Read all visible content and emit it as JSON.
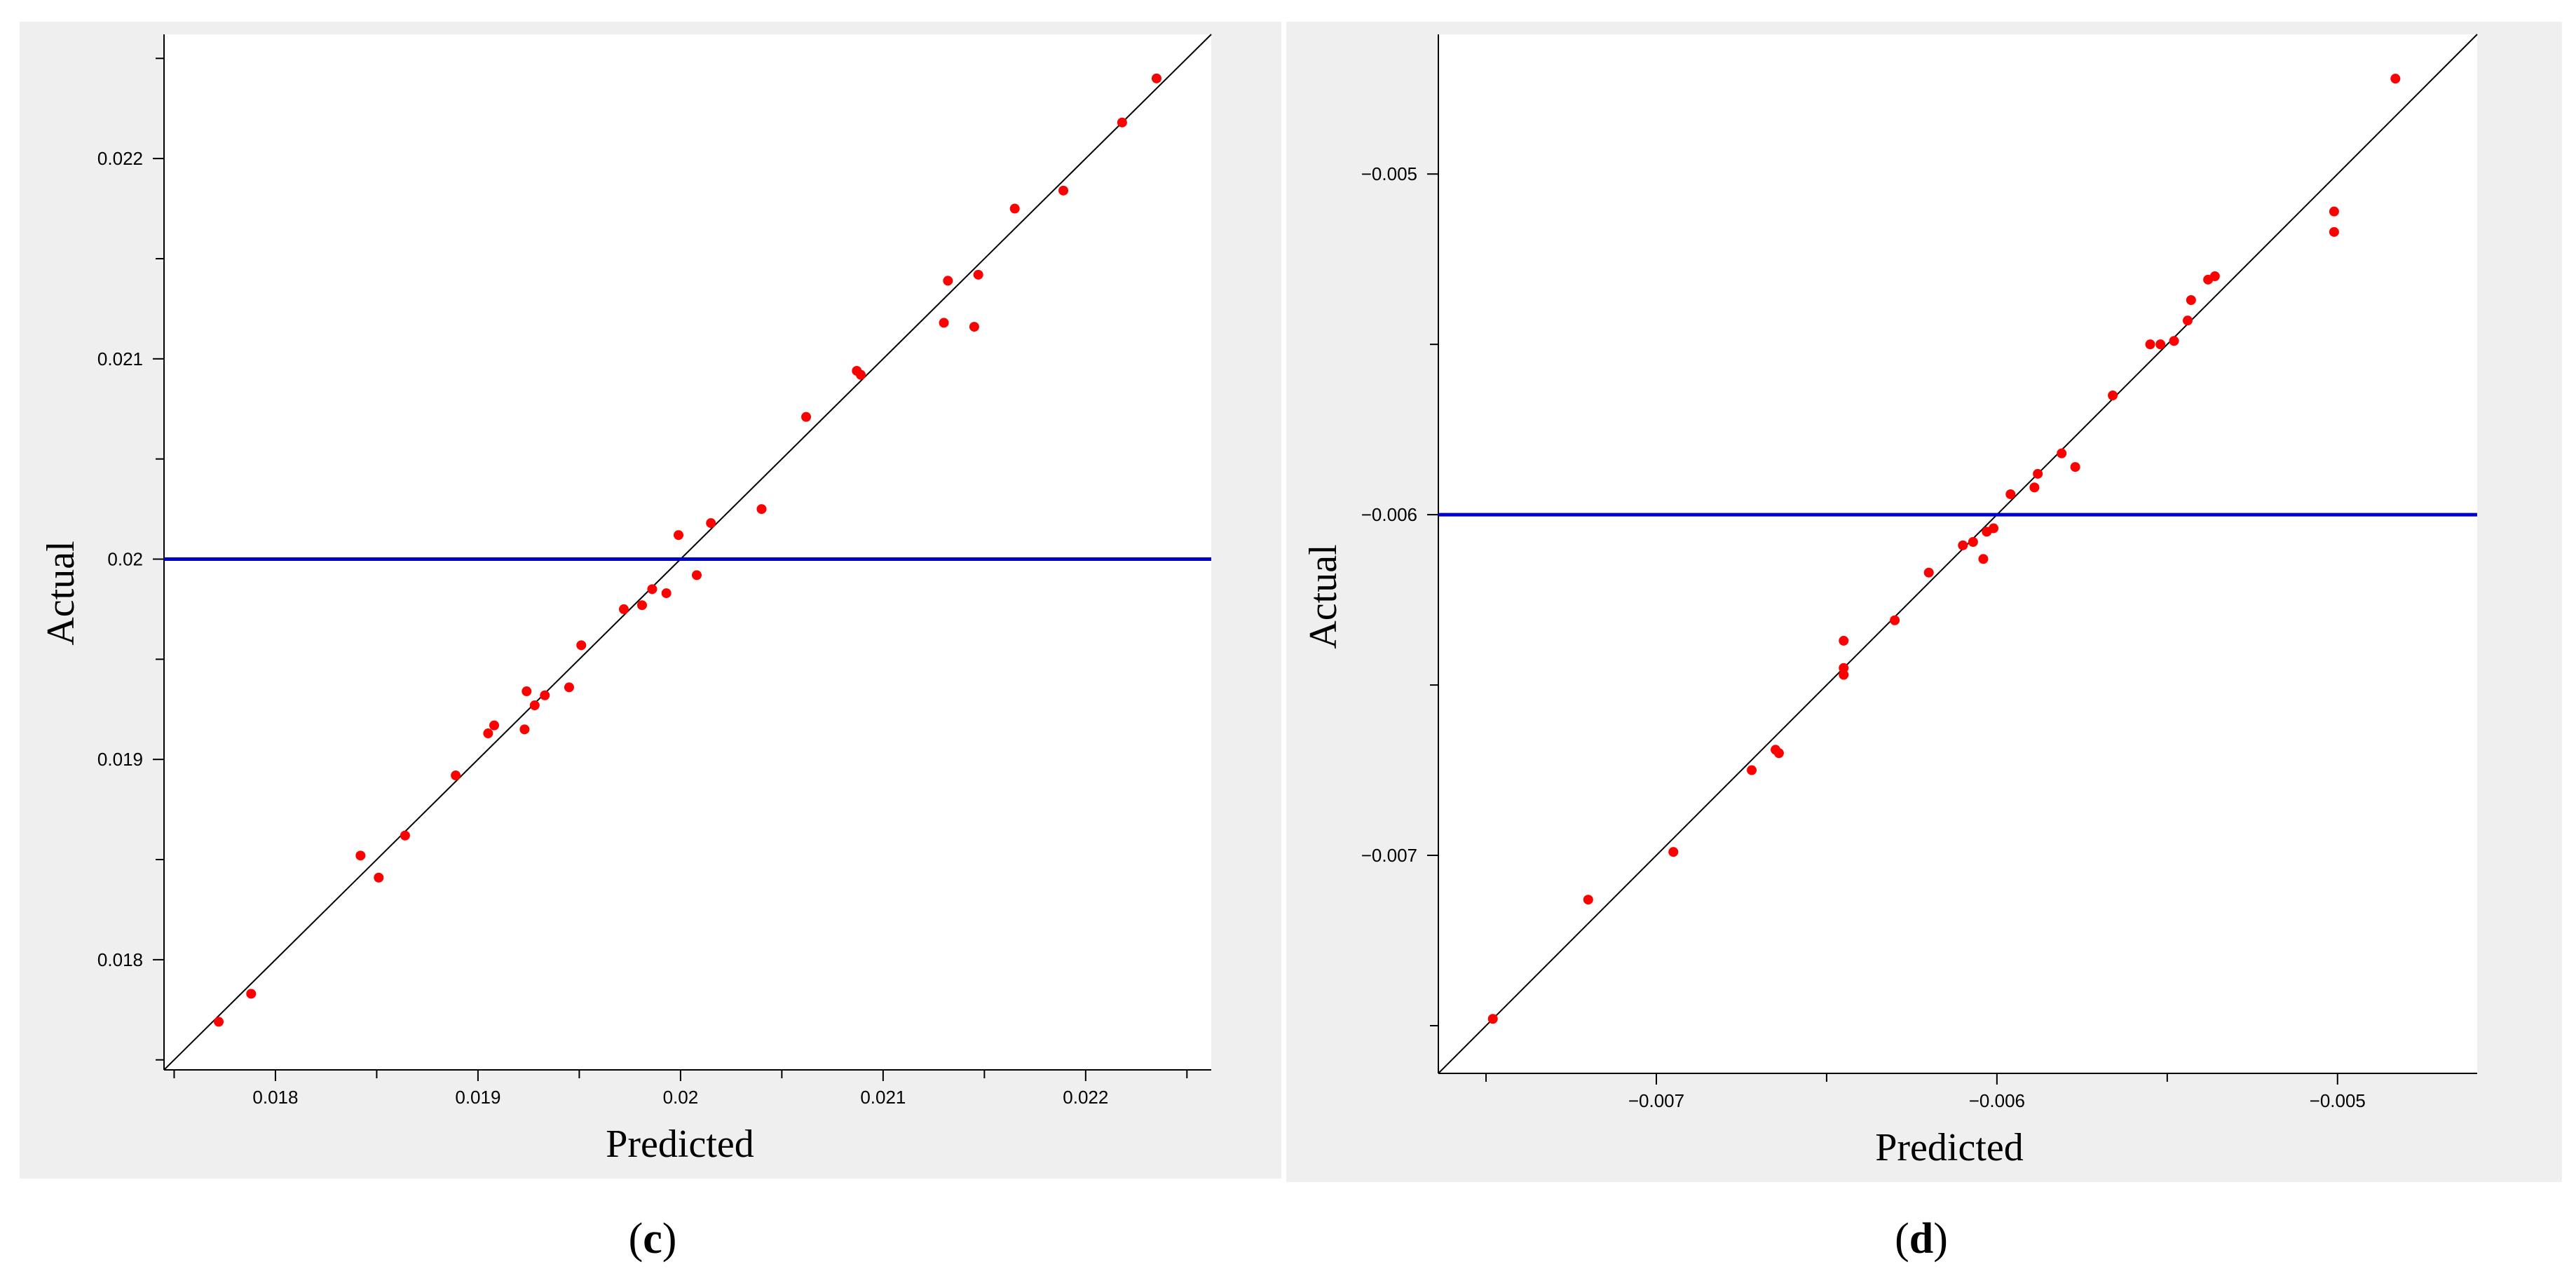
{
  "chart_data": [
    {
      "panel_label": "c",
      "type": "scatter",
      "xlabel": "Predicted",
      "ylabel": "Actual",
      "xlim": [
        0.01745,
        0.02262
      ],
      "ylim": [
        0.01745,
        0.02262
      ],
      "xticks": [
        0.018,
        0.019,
        0.02,
        0.021,
        0.022
      ],
      "yticks": [
        0.018,
        0.019,
        0.02,
        0.021,
        0.022
      ],
      "xtick_labels": [
        "0.018",
        "0.019",
        "0.02",
        "0.021",
        "0.022"
      ],
      "ytick_labels": [
        "0.018",
        "0.019",
        "0.02",
        "0.021",
        "0.022"
      ],
      "reference_line": "y = x",
      "hline": 0.02,
      "colors": {
        "points": "#ff0000",
        "hline": "#0000cc",
        "diagonal": "#000000",
        "panel_bg": "#efefef"
      },
      "grid": false,
      "points": [
        [
          0.01772,
          0.01769
        ],
        [
          0.01788,
          0.01783
        ],
        [
          0.01842,
          0.01852
        ],
        [
          0.01851,
          0.01841
        ],
        [
          0.01864,
          0.01862
        ],
        [
          0.01889,
          0.01892
        ],
        [
          0.01905,
          0.01913
        ],
        [
          0.01908,
          0.01917
        ],
        [
          0.01923,
          0.01915
        ],
        [
          0.01924,
          0.01934
        ],
        [
          0.01928,
          0.01927
        ],
        [
          0.01933,
          0.01932
        ],
        [
          0.01945,
          0.01936
        ],
        [
          0.01951,
          0.01957
        ],
        [
          0.01972,
          0.01975
        ],
        [
          0.01981,
          0.01977
        ],
        [
          0.01986,
          0.01985
        ],
        [
          0.01993,
          0.01983
        ],
        [
          0.01999,
          0.02012
        ],
        [
          0.02008,
          0.01992
        ],
        [
          0.02015,
          0.02018
        ],
        [
          0.0204,
          0.02025
        ],
        [
          0.02062,
          0.02071
        ],
        [
          0.02087,
          0.02094
        ],
        [
          0.02089,
          0.02092
        ],
        [
          0.0213,
          0.02118
        ],
        [
          0.02132,
          0.02139
        ],
        [
          0.02145,
          0.02116
        ],
        [
          0.02147,
          0.02142
        ],
        [
          0.02165,
          0.02175
        ],
        [
          0.02189,
          0.02184
        ],
        [
          0.02218,
          0.02218
        ],
        [
          0.02235,
          0.0224
        ]
      ]
    },
    {
      "panel_label": "d",
      "type": "scatter",
      "xlabel": "Predicted",
      "ylabel": "Actual",
      "xlim": [
        -0.00764,
        -0.00459
      ],
      "ylim": [
        -0.00764,
        -0.00459
      ],
      "xticks": [
        -0.007,
        -0.006,
        -0.005
      ],
      "yticks": [
        -0.007,
        -0.006,
        -0.005
      ],
      "xtick_labels": [
        "−0.007",
        "−0.006",
        "−0.005"
      ],
      "ytick_labels": [
        "−0.007",
        "−0.006",
        "−0.005"
      ],
      "reference_line": "y = x",
      "hline": -0.006,
      "colors": {
        "points": "#ff0000",
        "hline": "#0000cc",
        "diagonal": "#000000",
        "panel_bg": "#efefef"
      },
      "grid": false,
      "points": [
        [
          -0.00748,
          -0.00748
        ],
        [
          -0.0072,
          -0.00713
        ],
        [
          -0.00695,
          -0.00699
        ],
        [
          -0.00672,
          -0.00675
        ],
        [
          -0.00665,
          -0.00669
        ],
        [
          -0.00664,
          -0.0067
        ],
        [
          -0.00645,
          -0.00637
        ],
        [
          -0.00645,
          -0.00645
        ],
        [
          -0.00645,
          -0.00647
        ],
        [
          -0.0063,
          -0.00631
        ],
        [
          -0.0062,
          -0.00617
        ],
        [
          -0.0061,
          -0.00609
        ],
        [
          -0.00607,
          -0.00608
        ],
        [
          -0.00604,
          -0.00613
        ],
        [
          -0.00603,
          -0.00605
        ],
        [
          -0.00601,
          -0.00604
        ],
        [
          -0.00596,
          -0.00594
        ],
        [
          -0.00589,
          -0.00592
        ],
        [
          -0.00588,
          -0.00588
        ],
        [
          -0.00581,
          -0.00582
        ],
        [
          -0.00577,
          -0.00586
        ],
        [
          -0.00566,
          -0.00565
        ],
        [
          -0.00555,
          -0.0055
        ],
        [
          -0.00552,
          -0.0055
        ],
        [
          -0.00548,
          -0.00549
        ],
        [
          -0.00544,
          -0.00543
        ],
        [
          -0.00543,
          -0.00537
        ],
        [
          -0.00538,
          -0.00531
        ],
        [
          -0.00536,
          -0.0053
        ],
        [
          -0.00501,
          -0.00511
        ],
        [
          -0.00501,
          -0.00517
        ],
        [
          -0.00483,
          -0.00472
        ]
      ]
    }
  ]
}
